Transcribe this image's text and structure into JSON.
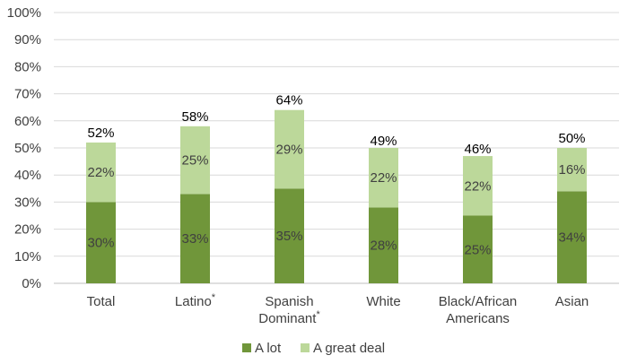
{
  "chart_data": {
    "type": "bar",
    "stacked": true,
    "categories": [
      {
        "label": [
          "Total"
        ],
        "star": false
      },
      {
        "label": [
          "Latino"
        ],
        "star": true
      },
      {
        "label": [
          "Spanish",
          "Dominant"
        ],
        "star": true
      },
      {
        "label": [
          "White"
        ],
        "star": false
      },
      {
        "label": [
          "Black/African",
          "Americans"
        ],
        "star": false
      },
      {
        "label": [
          "Asian"
        ],
        "star": false
      }
    ],
    "series": [
      {
        "name": "A lot",
        "color": "#70963a",
        "values": [
          30,
          33,
          35,
          28,
          25,
          34
        ]
      },
      {
        "name": "A great deal",
        "color": "#bcd89a",
        "values": [
          22,
          25,
          29,
          22,
          22,
          16
        ]
      }
    ],
    "totals": [
      52,
      58,
      64,
      49,
      46,
      50
    ],
    "ylim": [
      0,
      100
    ],
    "ytick_step": 10,
    "unit": "%",
    "grid": true,
    "legend_position": "bottom"
  }
}
